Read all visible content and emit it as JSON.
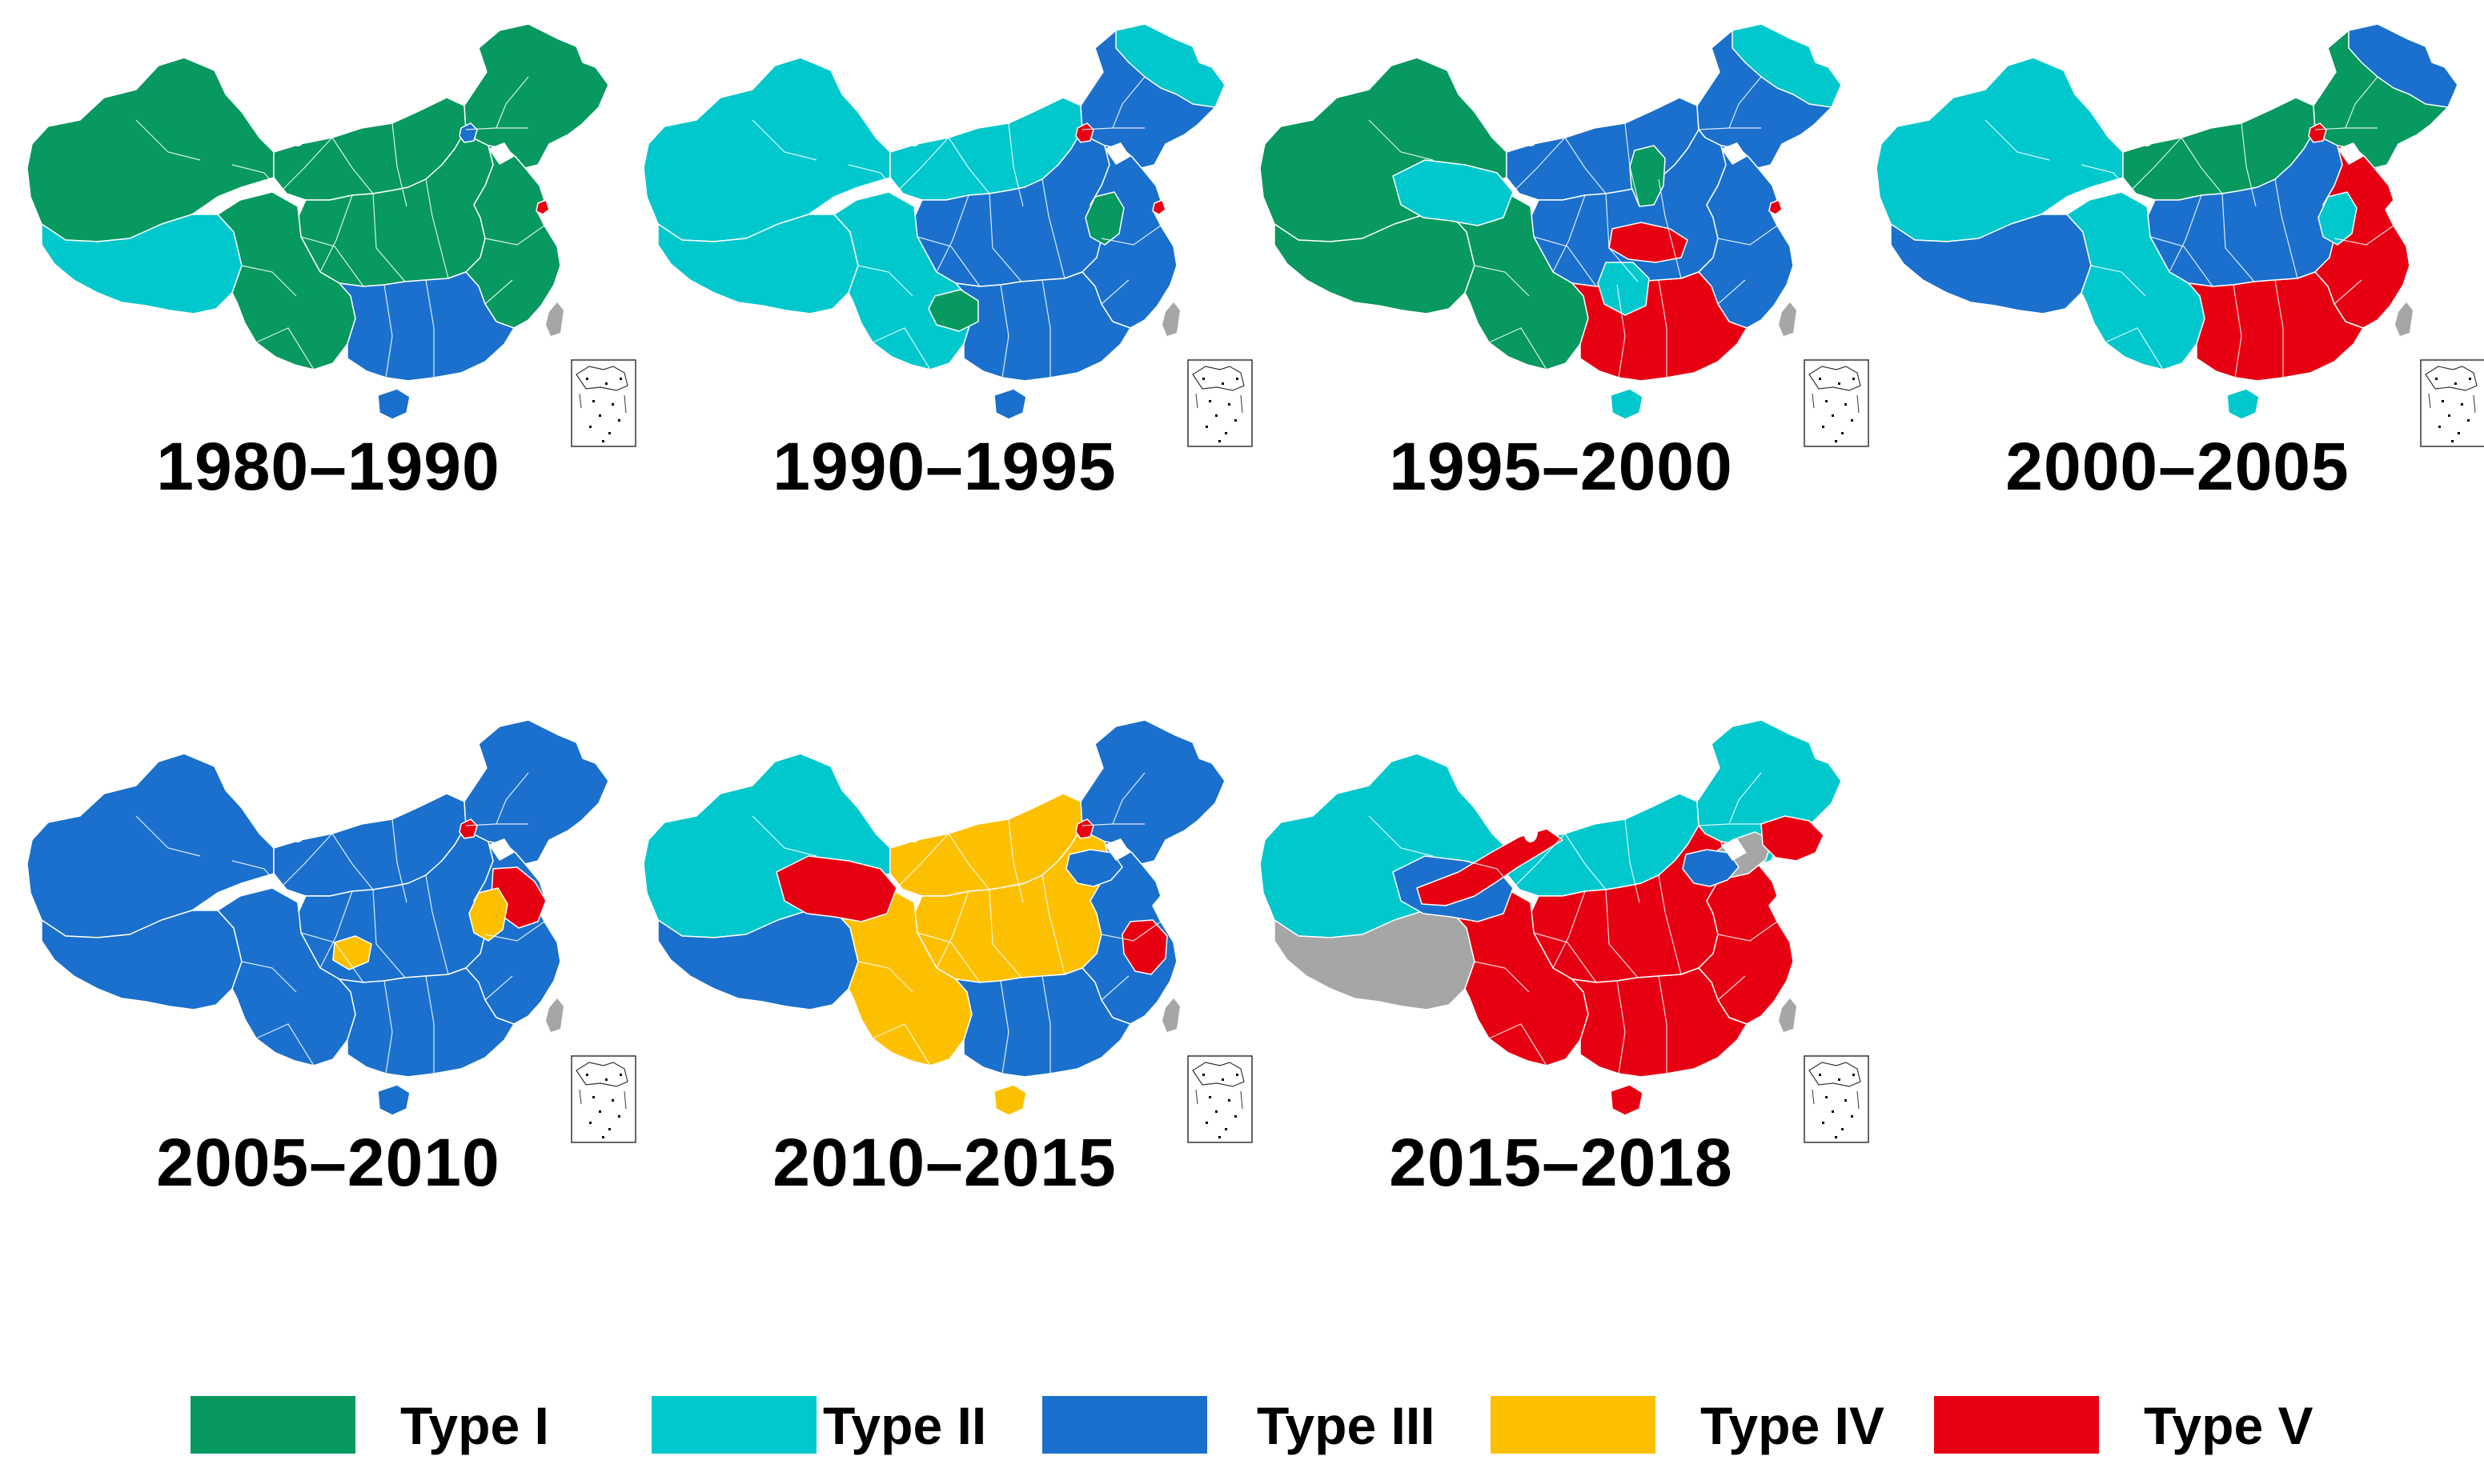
{
  "colors": {
    "type_i": "#07995F",
    "type_ii": "#00C8CC",
    "type_iii": "#1A70CC",
    "type_iv": "#FDC000",
    "type_v": "#E60012",
    "no_data": "#A6A6A6",
    "taiwan": "#A6A6A6",
    "border": "#ffffff"
  },
  "legend": [
    {
      "label": "Type I",
      "color_key": "type_i"
    },
    {
      "label": "Type II",
      "color_key": "type_ii"
    },
    {
      "label": "Type III",
      "color_key": "type_iii"
    },
    {
      "label": "Type IV",
      "color_key": "type_iv"
    },
    {
      "label": "Type V",
      "color_key": "type_v"
    }
  ],
  "maps": [
    {
      "period": "1980–1990",
      "regions": {
        "northwest": "type_i",
        "tibet": "type_ii",
        "north": "type_i",
        "northeast": "type_i",
        "central": "type_i",
        "southwest": "type_i",
        "east": "type_i",
        "south": "type_iii",
        "hainan": "type_iii"
      },
      "highlights": [
        {
          "region": "beijing",
          "type": "type_iii"
        },
        {
          "region": "shanghai",
          "type": "type_v"
        }
      ]
    },
    {
      "period": "1990–1995",
      "regions": {
        "northwest": "type_ii",
        "tibet": "type_ii",
        "north": "type_ii",
        "northeast": "type_iii",
        "central": "type_iii",
        "southwest": "type_ii",
        "east": "type_iii",
        "south": "type_iii",
        "hainan": "type_iii"
      },
      "highlights": [
        {
          "region": "beijing",
          "type": "type_v"
        },
        {
          "region": "anhui",
          "type": "type_i"
        },
        {
          "region": "guizhou",
          "type": "type_i"
        },
        {
          "region": "shanghai",
          "type": "type_v"
        },
        {
          "region": "heilongjiang",
          "type": "type_ii"
        }
      ]
    },
    {
      "period": "1995–2000",
      "regions": {
        "northwest": "type_i",
        "tibet": "type_i",
        "north": "type_iii",
        "northeast": "type_iii",
        "central": "type_iii",
        "southwest": "type_i",
        "east": "type_iii",
        "south": "type_v",
        "hainan": "type_ii"
      },
      "highlights": [
        {
          "region": "qinghai",
          "type": "type_ii"
        },
        {
          "region": "hubei",
          "type": "type_v"
        },
        {
          "region": "shanxi",
          "type": "type_i"
        },
        {
          "region": "hunan",
          "type": "type_ii"
        },
        {
          "region": "shanghai",
          "type": "type_v"
        },
        {
          "region": "heilongjiang",
          "type": "type_ii"
        }
      ]
    },
    {
      "period": "2000–2005",
      "regions": {
        "northwest": "type_ii",
        "tibet": "type_iii",
        "north": "type_i",
        "northeast": "type_i",
        "central": "type_iii",
        "southwest": "type_ii",
        "east": "type_v",
        "south": "type_v",
        "hainan": "type_ii"
      },
      "highlights": [
        {
          "region": "beijing",
          "type": "type_v"
        },
        {
          "region": "anhui",
          "type": "type_ii"
        },
        {
          "region": "heilongjiang",
          "type": "type_iii"
        }
      ]
    },
    {
      "period": "2005–2010",
      "regions": {
        "northwest": "type_iii",
        "tibet": "type_iii",
        "north": "type_iii",
        "northeast": "type_iii",
        "central": "type_iii",
        "southwest": "type_iii",
        "east": "type_iii",
        "south": "type_iii",
        "hainan": "type_iii"
      },
      "highlights": [
        {
          "region": "beijing",
          "type": "type_v"
        },
        {
          "region": "jiangsu",
          "type": "type_v"
        },
        {
          "region": "anhui",
          "type": "type_iv"
        },
        {
          "region": "chongqing",
          "type": "type_iv"
        }
      ]
    },
    {
      "period": "2010–2015",
      "regions": {
        "northwest": "type_ii",
        "tibet": "type_iii",
        "north": "type_iv",
        "northeast": "type_iii",
        "central": "type_iv",
        "southwest": "type_iv",
        "east": "type_iii",
        "south": "type_iii",
        "hainan": "type_iv"
      },
      "highlights": [
        {
          "region": "qinghai",
          "type": "type_v"
        },
        {
          "region": "beijing",
          "type": "type_v"
        },
        {
          "region": "zhejiang",
          "type": "type_v"
        },
        {
          "region": "shandong",
          "type": "type_iii"
        }
      ]
    },
    {
      "period": "2015–2018",
      "regions": {
        "northwest": "type_ii",
        "tibet": "no_data",
        "north": "type_ii",
        "northeast": "type_ii",
        "central": "type_v",
        "southwest": "type_v",
        "east": "type_v",
        "south": "type_v",
        "hainan": "type_v"
      },
      "highlights": [
        {
          "region": "qinghai",
          "type": "type_iii"
        },
        {
          "region": "gansu",
          "type": "type_v"
        },
        {
          "region": "liaoning",
          "type": "no_data"
        },
        {
          "region": "jilin",
          "type": "type_v"
        },
        {
          "region": "shandong",
          "type": "type_iii"
        }
      ]
    }
  ]
}
